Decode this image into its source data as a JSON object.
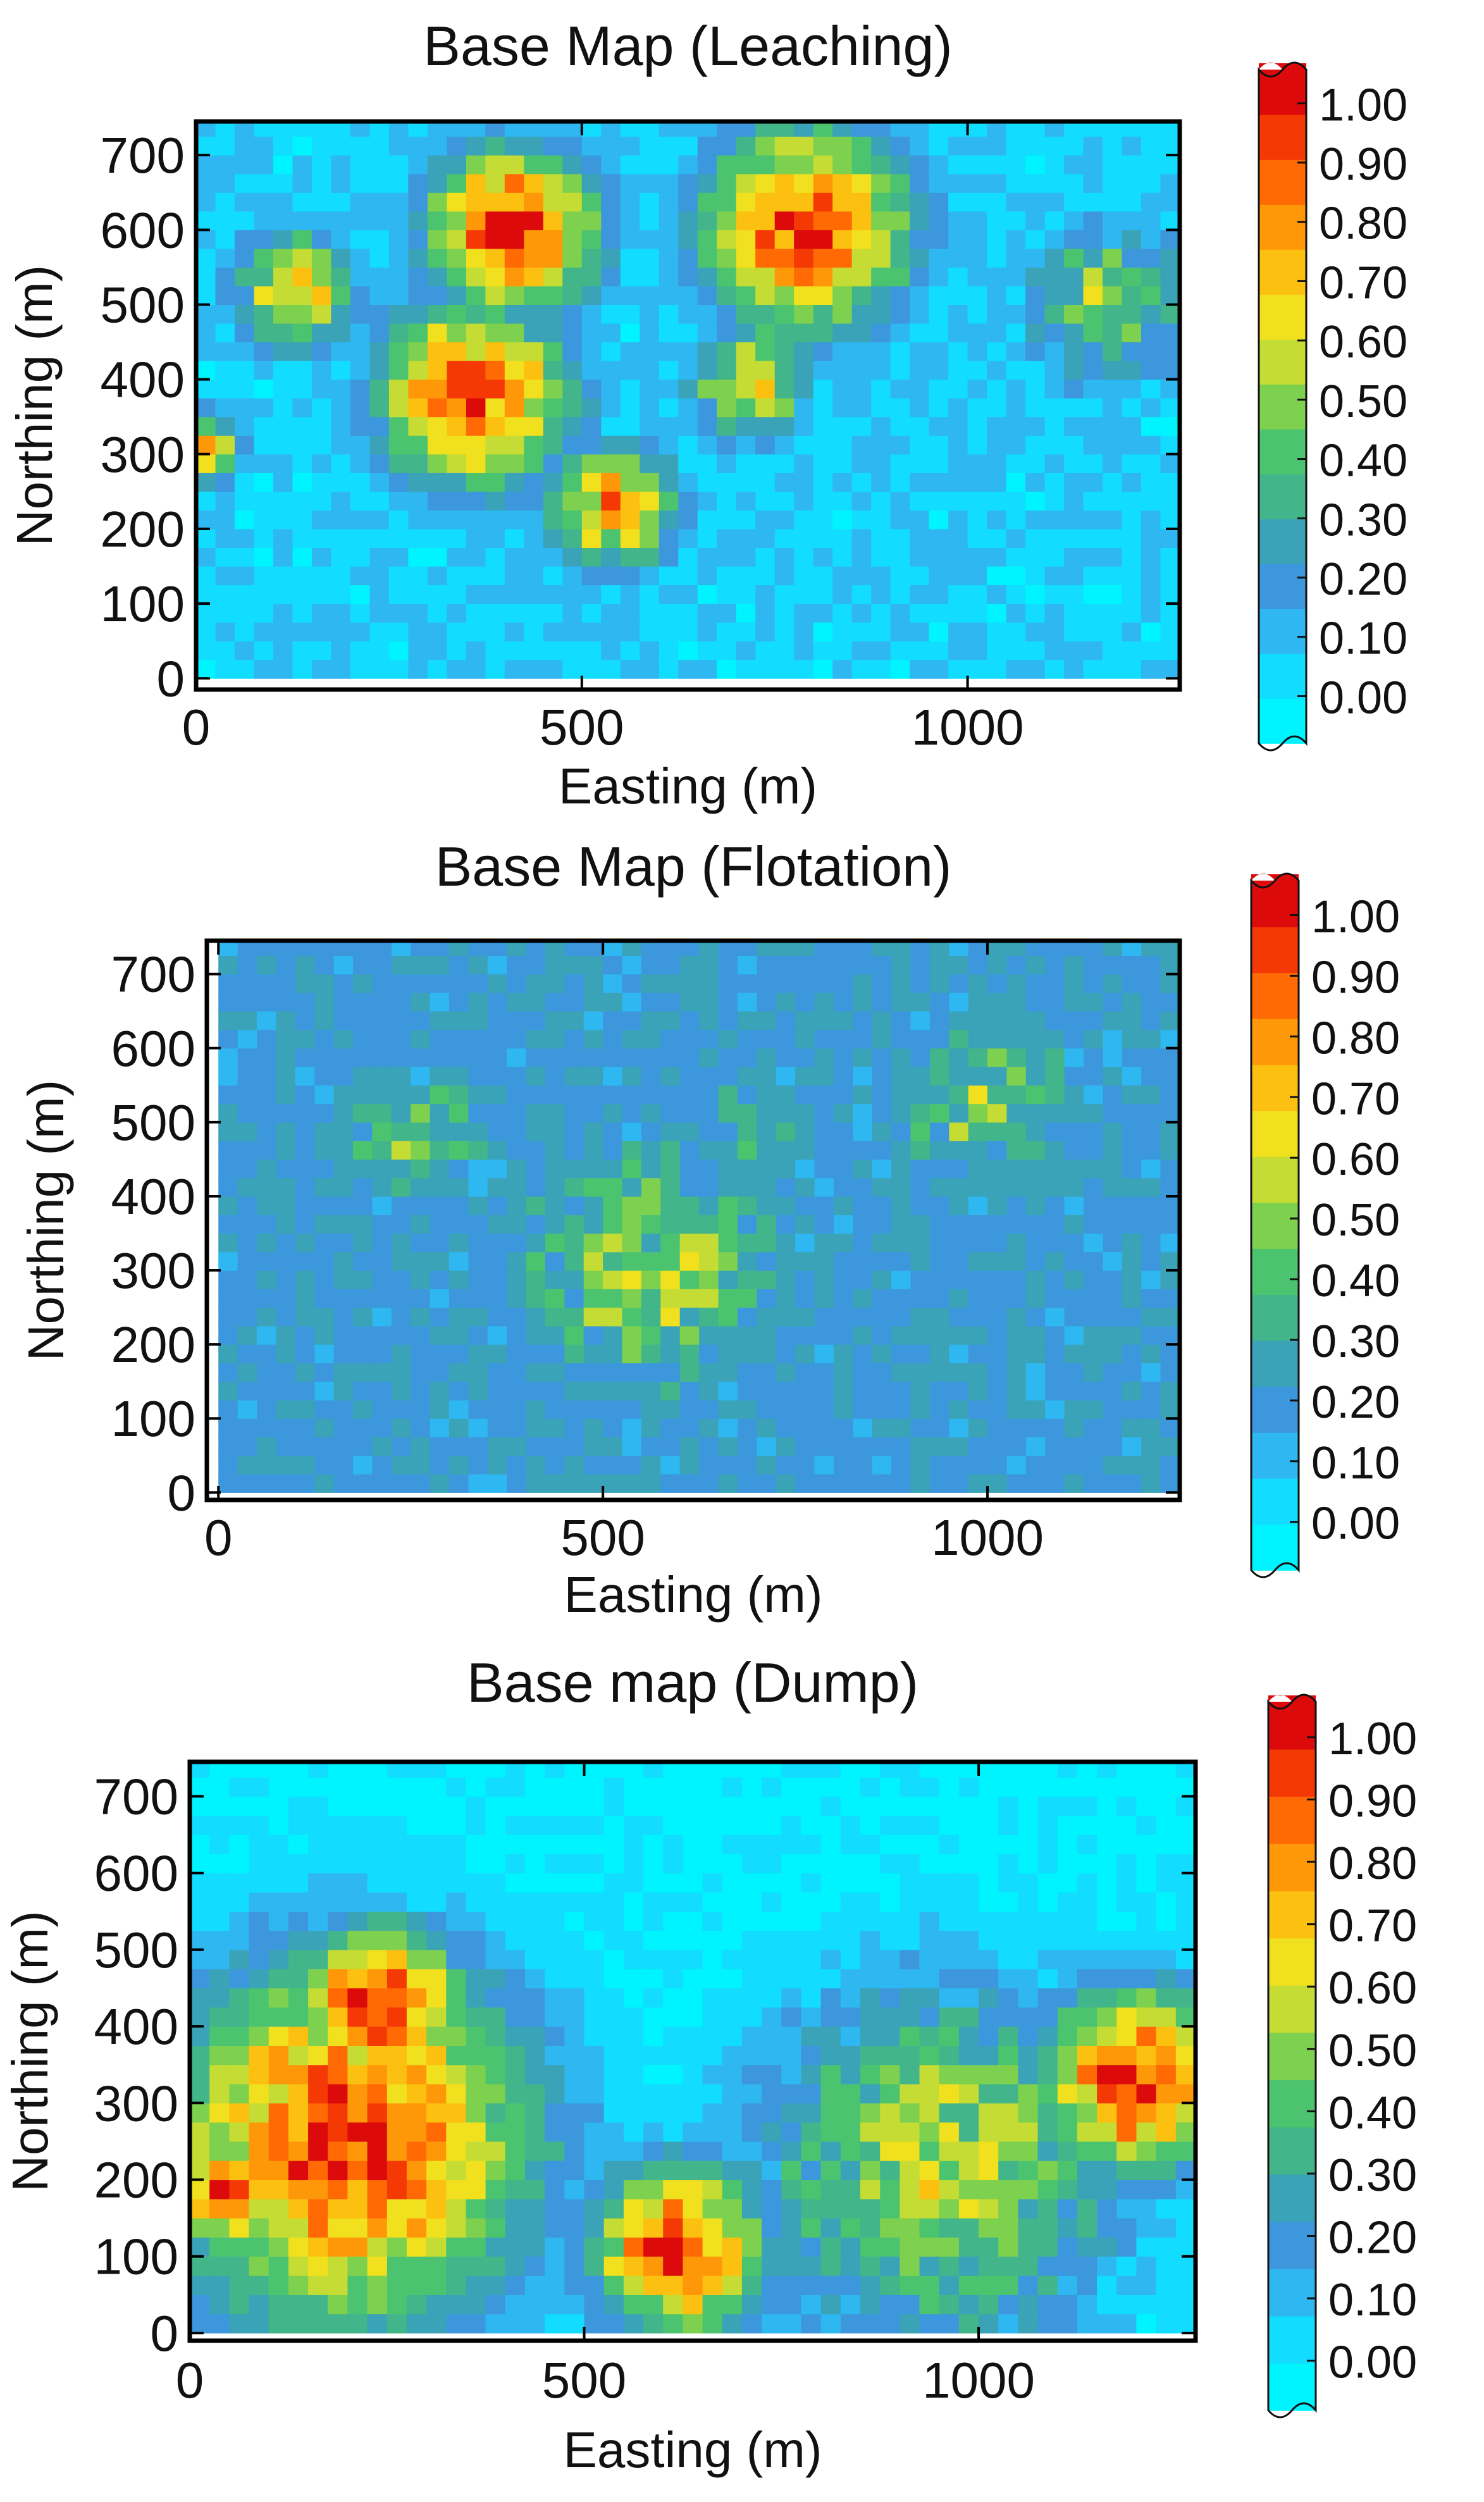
{
  "colorbar": {
    "ticks": [
      "1.00",
      "0.90",
      "0.80",
      "0.70",
      "0.60",
      "0.50",
      "0.40",
      "0.30",
      "0.20",
      "0.10",
      "0.00"
    ],
    "colors": [
      "#00f4ff",
      "#12dcff",
      "#2fb7f2",
      "#3d97dd",
      "#3aa3b8",
      "#42b58a",
      "#4cc46f",
      "#7ed04f",
      "#c4dc33",
      "#f0e01e",
      "#fcc010",
      "#ff9808",
      "#ff6a05",
      "#f53905",
      "#dc0a0a"
    ]
  },
  "chart_data": [
    {
      "type": "heatmap",
      "title": "Base Map (Leaching)",
      "xlabel": "Easting (m)",
      "ylabel": "Northing (m)",
      "xlim": [
        0,
        1275
      ],
      "ylim": [
        -15,
        745
      ],
      "xticks": [
        0,
        500,
        1000
      ],
      "xtick_labels": [
        "0",
        "500",
        "1000"
      ],
      "yticks": [
        0,
        100,
        200,
        300,
        400,
        500,
        600,
        700
      ],
      "ytick_labels": [
        "0",
        "100",
        "200",
        "300",
        "400",
        "500",
        "600",
        "700"
      ],
      "grid": false,
      "colorbar_range": [
        0,
        1
      ],
      "cell_size_m": 25,
      "background_value": 0.12,
      "hotspots": [
        {
          "x": 410,
          "y": 600,
          "radius": 120,
          "peak": 0.95
        },
        {
          "x": 790,
          "y": 600,
          "radius": 150,
          "peak": 0.9
        },
        {
          "x": 360,
          "y": 380,
          "radius": 140,
          "peak": 0.85
        },
        {
          "x": 540,
          "y": 230,
          "radius": 90,
          "peak": 0.75
        },
        {
          "x": 130,
          "y": 520,
          "radius": 90,
          "peak": 0.65
        },
        {
          "x": 0,
          "y": 310,
          "radius": 60,
          "peak": 0.7
        },
        {
          "x": 1180,
          "y": 500,
          "radius": 120,
          "peak": 0.5
        },
        {
          "x": 720,
          "y": 400,
          "radius": 90,
          "peak": 0.6
        }
      ]
    },
    {
      "type": "heatmap",
      "title": "Base Map (Flotation)",
      "xlabel": "Easting (m)",
      "ylabel": "Northing (m)",
      "xlim": [
        -15,
        1250
      ],
      "ylim": [
        -10,
        745
      ],
      "xticks": [
        0,
        500,
        1000
      ],
      "xtick_labels": [
        "0",
        "500",
        "1000"
      ],
      "yticks": [
        0,
        100,
        200,
        300,
        400,
        500,
        600,
        700
      ],
      "ytick_labels": [
        "0",
        "100",
        "200",
        "300",
        "400",
        "500",
        "600",
        "700"
      ],
      "grid": false,
      "colorbar_range": [
        0,
        1
      ],
      "cell_size_m": 25,
      "background_value": 0.25,
      "hotspots": [
        {
          "x": 560,
          "y": 300,
          "radius": 220,
          "peak": 0.5
        },
        {
          "x": 250,
          "y": 480,
          "radius": 120,
          "peak": 0.45
        },
        {
          "x": 1000,
          "y": 520,
          "radius": 160,
          "peak": 0.45
        },
        {
          "x": 700,
          "y": 500,
          "radius": 90,
          "peak": 0.4
        }
      ]
    },
    {
      "type": "heatmap",
      "title": "Base map (Dump)",
      "xlabel": "Easting (m)",
      "ylabel": "Northing (m)",
      "xlim": [
        0,
        1275
      ],
      "ylim": [
        -10,
        745
      ],
      "xticks": [
        0,
        500,
        1000
      ],
      "xtick_labels": [
        "0",
        "500",
        "1000"
      ],
      "yticks": [
        0,
        100,
        200,
        300,
        400,
        500,
        600,
        700
      ],
      "ytick_labels": [
        "0",
        "100",
        "200",
        "300",
        "400",
        "500",
        "600",
        "700"
      ],
      "grid": false,
      "colorbar_range": [
        0,
        1
      ],
      "cell_size_m": 25,
      "background_value": 0.05,
      "hotspots": [
        {
          "x": 200,
          "y": 250,
          "radius": 260,
          "peak": 0.88
        },
        {
          "x": 240,
          "y": 430,
          "radius": 110,
          "peak": 0.95
        },
        {
          "x": 620,
          "y": 110,
          "radius": 120,
          "peak": 0.9
        },
        {
          "x": 1200,
          "y": 330,
          "radius": 130,
          "peak": 0.92
        },
        {
          "x": 950,
          "y": 220,
          "radius": 260,
          "peak": 0.55
        },
        {
          "x": 50,
          "y": 180,
          "radius": 70,
          "peak": 0.9
        }
      ]
    }
  ]
}
